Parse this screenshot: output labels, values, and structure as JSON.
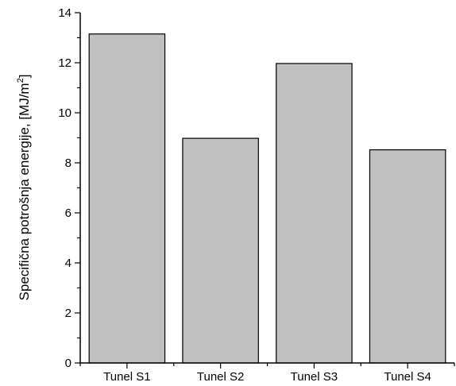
{
  "chart_data": {
    "type": "bar",
    "categories": [
      "Tunel S1",
      "Tunel S2",
      "Tunel S3",
      "Tunel S4"
    ],
    "values": [
      13.15,
      8.98,
      11.97,
      8.52
    ],
    "ylabel": "Specifična potrošnja energije, [MJ/m",
    "ylabel_sup": "2",
    "ylabel_end": "]",
    "ylim": [
      0,
      14
    ],
    "yticks": [
      "0",
      "2",
      "4",
      "6",
      "8",
      "10",
      "12",
      "14"
    ],
    "ytick_values": [
      0,
      2,
      4,
      6,
      8,
      10,
      12,
      14
    ],
    "grid": false,
    "bar_color": "#c0c0c0",
    "bar_edge_color": "#000000"
  }
}
